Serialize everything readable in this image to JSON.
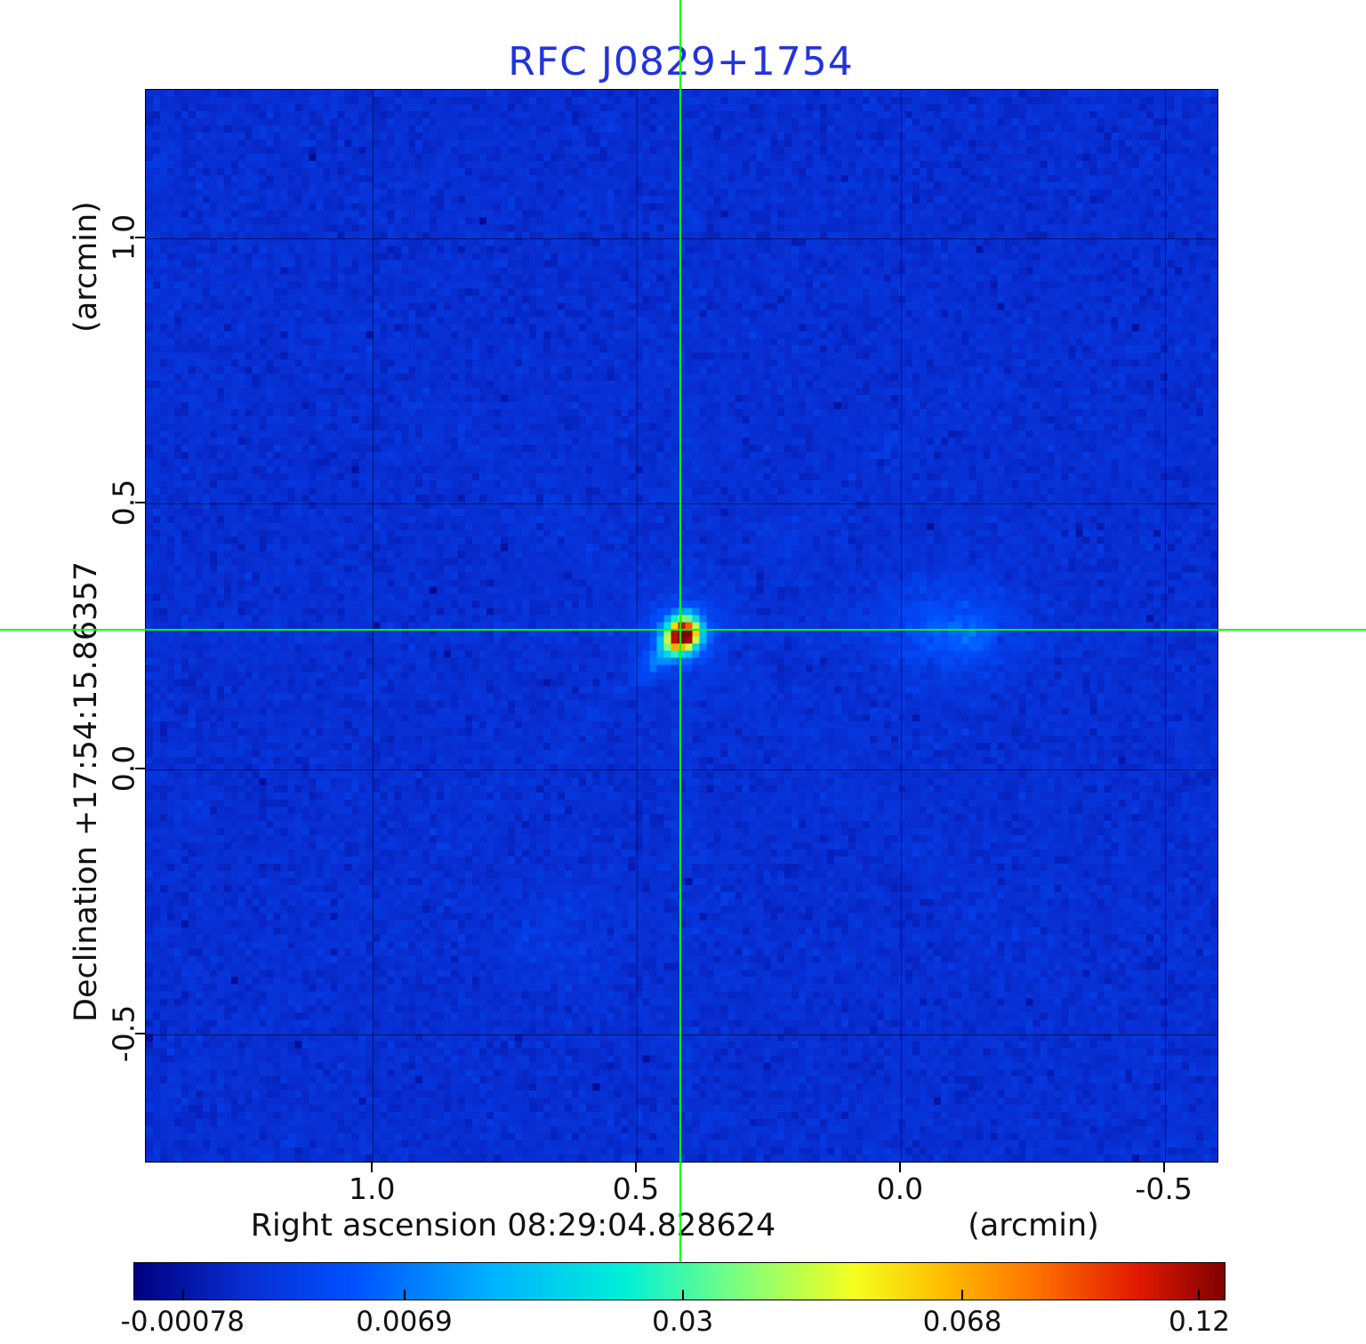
{
  "title": "RFC J0829+1754",
  "colors": {
    "title": "#2233dd",
    "crosshair": "#00ff00",
    "grid": "#000000",
    "background": "#ffffff"
  },
  "axes": {
    "x_title": "Right ascension  08:29:04.828624",
    "x_unit": "(arcmin)",
    "y_title": "Declination  +17:54:15.86357",
    "y_unit": "(arcmin)",
    "x_ticks": [
      "1.0",
      "0.5",
      "0.0",
      "-0.5"
    ],
    "y_ticks": [
      "1.0",
      "0.5",
      "0.0",
      "-0.5"
    ]
  },
  "colorbar": {
    "ticks": [
      "-0.00078",
      "0.0069",
      "0.03",
      "0.068",
      "0.12"
    ]
  },
  "chart_data": {
    "type": "heatmap",
    "title": "RFC J0829+1754",
    "xlabel": "Right ascension 08:29:04.828624 (arcmin)",
    "ylabel": "Declination +17:54:15.86357 (arcmin)",
    "x_ticks": [
      1.0,
      0.5,
      0.0,
      -0.5
    ],
    "y_ticks": [
      1.0,
      0.5,
      0.0,
      -0.5
    ],
    "x_range_arcmin": [
      1.43,
      -0.6
    ],
    "y_range_arcmin": [
      -0.74,
      1.28
    ],
    "colorbar_ticks": [
      -0.00078,
      0.0069,
      0.03,
      0.068,
      0.12
    ],
    "colorbar_range": [
      -0.00078,
      0.12
    ],
    "colorbar_tick_positions": [
      0.045,
      0.248,
      0.503,
      0.759,
      0.976
    ],
    "grid": true,
    "crosshair": {
      "x_arcmin": 0.418,
      "y_arcmin": 0.262
    },
    "features": [
      {
        "name": "compact-source",
        "x_arcmin": 0.418,
        "y_arcmin": 0.262,
        "peak": 0.12,
        "shape": "bright point source at crosshair with faint southwest extension"
      },
      {
        "name": "diffuse-component",
        "x_arcmin": -0.08,
        "y_arcmin": 0.27,
        "peak": 0.012,
        "shape": "faint extended emission patch east of the source"
      }
    ]
  }
}
